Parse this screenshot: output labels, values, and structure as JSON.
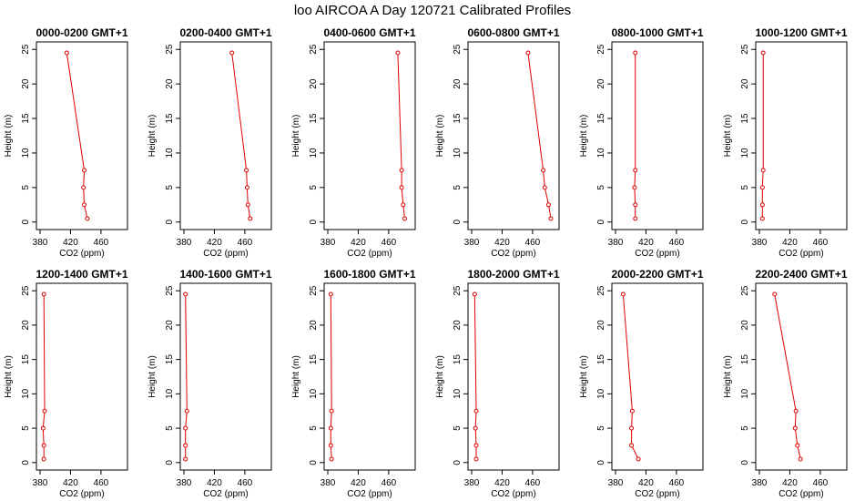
{
  "title": "loo AIRCOA A  Day 120721  Calibrated Profiles",
  "colors": {
    "line": "#dd0000",
    "axis": "#000000",
    "background": "#ffffff"
  },
  "chart_data": [
    {
      "type": "line",
      "title": "0000-0200 GMT+1",
      "xlabel": "CO2 (ppm)",
      "ylabel": "Height (m)",
      "xlim": [
        380,
        490
      ],
      "ylim": [
        0,
        25
      ],
      "xticks": [
        380,
        420,
        460
      ],
      "yticks": [
        0,
        5,
        10,
        15,
        20,
        25
      ],
      "grid": false,
      "series": [
        {
          "x": [
            442,
            438,
            437,
            438,
            415
          ],
          "y": [
            0.5,
            2.5,
            5,
            7.5,
            24.5
          ]
        }
      ]
    },
    {
      "type": "line",
      "title": "0200-0400 GMT+1",
      "xlabel": "CO2 (ppm)",
      "ylabel": "Height (m)",
      "xlim": [
        380,
        490
      ],
      "ylim": [
        0,
        25
      ],
      "xticks": [
        380,
        420,
        460
      ],
      "yticks": [
        0,
        5,
        10,
        15,
        20,
        25
      ],
      "grid": false,
      "series": [
        {
          "x": [
            467,
            464,
            463,
            462,
            443
          ],
          "y": [
            0.5,
            2.5,
            5,
            7.5,
            24.5
          ]
        }
      ]
    },
    {
      "type": "line",
      "title": "0400-0600 GMT+1",
      "xlabel": "CO2 (ppm)",
      "ylabel": "Height (m)",
      "xlim": [
        380,
        490
      ],
      "ylim": [
        0,
        25
      ],
      "xticks": [
        380,
        420,
        460
      ],
      "yticks": [
        0,
        5,
        10,
        15,
        20,
        25
      ],
      "grid": false,
      "series": [
        {
          "x": [
            481,
            479,
            477,
            477,
            472
          ],
          "y": [
            0.5,
            2.5,
            5,
            7.5,
            24.5
          ]
        }
      ]
    },
    {
      "type": "line",
      "title": "0600-0800 GMT+1",
      "xlabel": "CO2 (ppm)",
      "ylabel": "Height (m)",
      "xlim": [
        380,
        490
      ],
      "ylim": [
        0,
        25
      ],
      "xticks": [
        380,
        420,
        460
      ],
      "yticks": [
        0,
        5,
        10,
        15,
        20,
        25
      ],
      "grid": false,
      "series": [
        {
          "x": [
            484,
            481,
            476,
            474,
            454
          ],
          "y": [
            0.5,
            2.5,
            5,
            7.5,
            24.5
          ]
        }
      ]
    },
    {
      "type": "line",
      "title": "0800-1000 GMT+1",
      "xlabel": "CO2 (ppm)",
      "ylabel": "Height (m)",
      "xlim": [
        380,
        490
      ],
      "ylim": [
        0,
        25
      ],
      "xticks": [
        380,
        420,
        460
      ],
      "yticks": [
        0,
        5,
        10,
        15,
        20,
        25
      ],
      "grid": false,
      "series": [
        {
          "x": [
            406,
            406,
            405,
            406,
            406
          ],
          "y": [
            0.5,
            2.5,
            5,
            7.5,
            24.5
          ]
        }
      ]
    },
    {
      "type": "line",
      "title": "1000-1200 GMT+1",
      "xlabel": "CO2 (ppm)",
      "ylabel": "Height (m)",
      "xlim": [
        380,
        490
      ],
      "ylim": [
        0,
        25
      ],
      "xticks": [
        380,
        420,
        460
      ],
      "yticks": [
        0,
        5,
        10,
        15,
        20,
        25
      ],
      "grid": false,
      "series": [
        {
          "x": [
            384,
            384,
            384,
            385,
            385
          ],
          "y": [
            0.5,
            2.5,
            5,
            7.5,
            24.5
          ]
        }
      ]
    },
    {
      "type": "line",
      "title": "1200-1400 GMT+1",
      "xlabel": "CO2 (ppm)",
      "ylabel": "Height (m)",
      "xlim": [
        380,
        490
      ],
      "ylim": [
        0,
        25
      ],
      "xticks": [
        380,
        420,
        460
      ],
      "yticks": [
        0,
        5,
        10,
        15,
        20,
        25
      ],
      "grid": false,
      "series": [
        {
          "x": [
            385,
            385,
            384,
            386,
            385
          ],
          "y": [
            0.5,
            2.5,
            5,
            7.5,
            24.5
          ]
        }
      ]
    },
    {
      "type": "line",
      "title": "1400-1600 GMT+1",
      "xlabel": "CO2 (ppm)",
      "ylabel": "Height (m)",
      "xlim": [
        380,
        490
      ],
      "ylim": [
        0,
        25
      ],
      "xticks": [
        380,
        420,
        460
      ],
      "yticks": [
        0,
        5,
        10,
        15,
        20,
        25
      ],
      "grid": false,
      "series": [
        {
          "x": [
            382,
            382,
            382,
            384,
            382
          ],
          "y": [
            0.5,
            2.5,
            5,
            7.5,
            24.5
          ]
        }
      ]
    },
    {
      "type": "line",
      "title": "1600-1800 GMT+1",
      "xlabel": "CO2 (ppm)",
      "ylabel": "Height (m)",
      "xlim": [
        380,
        490
      ],
      "ylim": [
        0,
        25
      ],
      "xticks": [
        380,
        420,
        460
      ],
      "yticks": [
        0,
        5,
        10,
        15,
        20,
        25
      ],
      "grid": false,
      "series": [
        {
          "x": [
            385,
            384,
            384,
            385,
            384
          ],
          "y": [
            0.5,
            2.5,
            5,
            7.5,
            24.5
          ]
        }
      ]
    },
    {
      "type": "line",
      "title": "1800-2000 GMT+1",
      "xlabel": "CO2 (ppm)",
      "ylabel": "Height (m)",
      "xlim": [
        380,
        490
      ],
      "ylim": [
        0,
        25
      ],
      "xticks": [
        380,
        420,
        460
      ],
      "yticks": [
        0,
        5,
        10,
        15,
        20,
        25
      ],
      "grid": false,
      "series": [
        {
          "x": [
            386,
            386,
            385,
            386,
            384
          ],
          "y": [
            0.5,
            2.5,
            5,
            7.5,
            24.5
          ]
        }
      ]
    },
    {
      "type": "line",
      "title": "2000-2200 GMT+1",
      "xlabel": "CO2 (ppm)",
      "ylabel": "Height (m)",
      "xlim": [
        380,
        490
      ],
      "ylim": [
        0,
        25
      ],
      "xticks": [
        380,
        420,
        460
      ],
      "yticks": [
        0,
        5,
        10,
        15,
        20,
        25
      ],
      "grid": false,
      "series": [
        {
          "x": [
            410,
            401,
            401,
            402,
            390
          ],
          "y": [
            0.5,
            2.5,
            5,
            7.5,
            24.5
          ]
        }
      ]
    },
    {
      "type": "line",
      "title": "2200-2400 GMT+1",
      "xlabel": "CO2 (ppm)",
      "ylabel": "Height (m)",
      "xlim": [
        380,
        490
      ],
      "ylim": [
        0,
        25
      ],
      "xticks": [
        380,
        420,
        460
      ],
      "yticks": [
        0,
        5,
        10,
        15,
        20,
        25
      ],
      "grid": false,
      "series": [
        {
          "x": [
            434,
            430,
            427,
            428,
            400
          ],
          "y": [
            0.5,
            2.5,
            5,
            7.5,
            24.5
          ]
        }
      ]
    }
  ]
}
